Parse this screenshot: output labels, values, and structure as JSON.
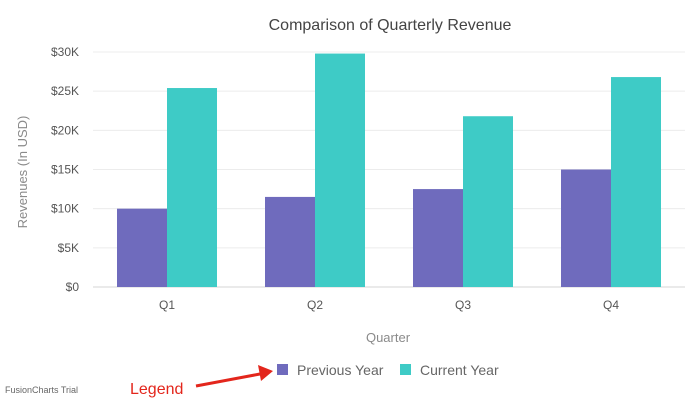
{
  "chart_data": {
    "type": "bar",
    "title": "Comparison of Quarterly Revenue",
    "xlabel": "Quarter",
    "ylabel": "Revenues (In USD)",
    "categories": [
      "Q1",
      "Q2",
      "Q3",
      "Q4"
    ],
    "series": [
      {
        "name": "Previous Year",
        "values": [
          10000,
          11500,
          12500,
          15000
        ],
        "color": "#6f6bbd"
      },
      {
        "name": "Current Year",
        "values": [
          25400,
          29800,
          21800,
          26800
        ],
        "color": "#3ecbc6"
      }
    ],
    "ylim": [
      0,
      30000
    ],
    "y_ticks": [
      0,
      5000,
      10000,
      15000,
      20000,
      25000,
      30000
    ],
    "y_tick_labels": [
      "$0",
      "$5K",
      "$10K",
      "$15K",
      "$20K",
      "$25K",
      "$30K"
    ],
    "grid": true,
    "legend_position": "bottom-center"
  },
  "watermark": "FusionCharts Trial",
  "annotation": {
    "text": "Legend",
    "color": "#e3261c"
  }
}
